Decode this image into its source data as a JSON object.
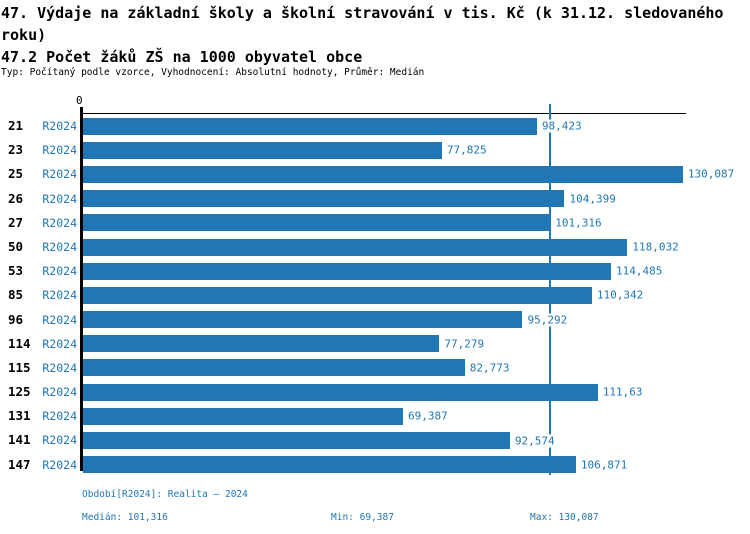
{
  "header": {
    "title": "47. Výdaje na základní školy a školní stravování v tis. Kč (k 31.12. sledovaného roku)",
    "subtitle": "47.2 Počet žáků ZŠ na 1000 obyvatel obce",
    "meta": "Typ: Počítaný podle vzorce, Vyhodnocení: Absolutní hodnoty, Průměr: Medián"
  },
  "chart_data": {
    "type": "bar",
    "orientation": "horizontal",
    "title": "47. Výdaje na základní školy a školní stravování v tis. Kč (k 31.12. sledovaného roku)",
    "subtitle": "47.2 Počet žáků ZŠ na 1000 obyvatel obce",
    "categories": [
      "21",
      "23",
      "25",
      "26",
      "27",
      "50",
      "53",
      "85",
      "96",
      "114",
      "115",
      "125",
      "131",
      "141",
      "147"
    ],
    "series": [
      {
        "name": "R2024",
        "values": [
          98.423,
          77.825,
          130.087,
          104.399,
          101.316,
          118.032,
          114.485,
          110.342,
          95.292,
          77.279,
          82.773,
          111.63,
          69.387,
          92.574,
          106.871
        ]
      }
    ],
    "value_labels": [
      "98,423",
      "77,825",
      "130,087",
      "104,399",
      "101,316",
      "118,032",
      "114,485",
      "110,342",
      "95,292",
      "77,279",
      "82,773",
      "111,63",
      "69,387",
      "92,574",
      "106,871"
    ],
    "period_label": "R2024",
    "zero_tick": "0",
    "xlim": [
      0,
      130.75
    ],
    "median_line": 101.316,
    "grid": false,
    "legend": false,
    "bar_color": "#2077b4"
  },
  "footer": {
    "period": "Období[R2024]: Realita – 2024",
    "median": "Medián: 101,316",
    "min": "Min: 69,387",
    "max": "Max: 130,087"
  },
  "colors": {
    "accent": "#2077b4",
    "axis": "#000000",
    "background": "#ffffff"
  }
}
